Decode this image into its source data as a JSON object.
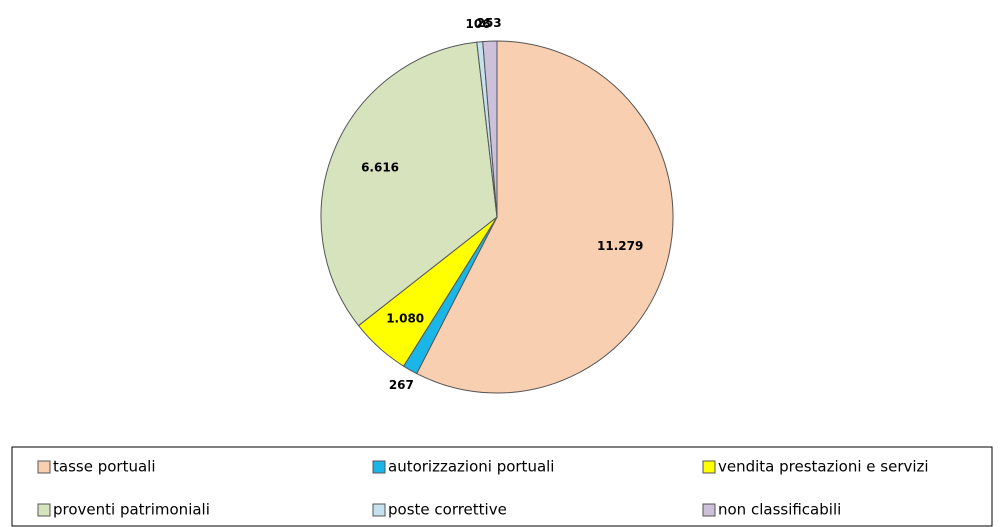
{
  "chart_data": {
    "type": "pie",
    "categories": [
      "tasse portuali",
      "autorizzazioni portuali",
      "vendita prestazioni e servizi",
      "proventi patrimoniali",
      "poste correttive",
      "non classificabili"
    ],
    "values": [
      11279,
      267,
      1080,
      6616,
      106,
      253
    ],
    "value_labels": [
      "11.279",
      "267",
      "1.080",
      "6.616",
      "106",
      "253"
    ],
    "colors": [
      "#f8cfb0",
      "#1ab6e8",
      "#ffff00",
      "#d6e3bd",
      "#c5e0ee",
      "#ccc0da"
    ],
    "legend": "bottom"
  }
}
